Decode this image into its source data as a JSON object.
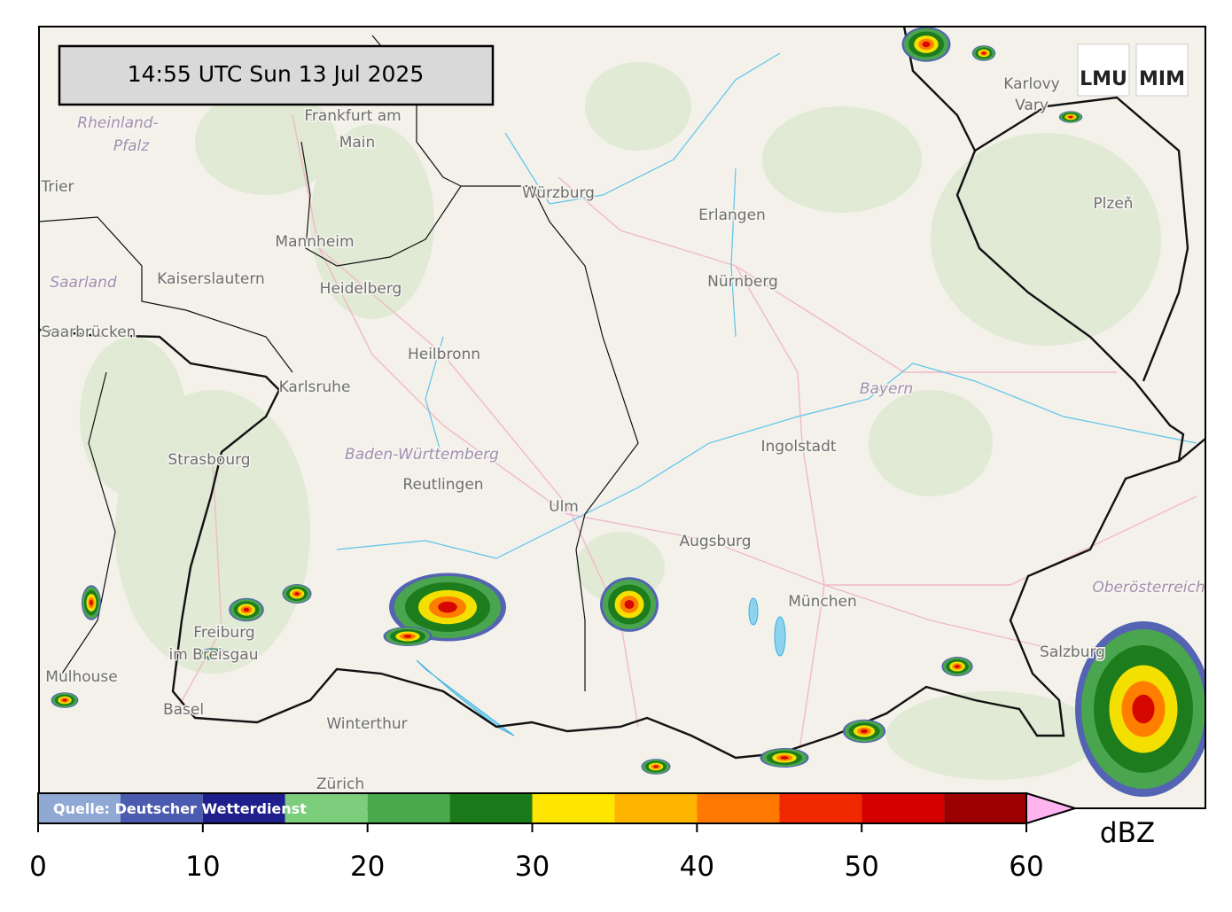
{
  "timestamp": "14:55 UTC  Sun 13 Jul 2025",
  "logos": [
    "LMU",
    "MIM"
  ],
  "places": [
    {
      "label": "Frankfurt am"
    },
    {
      "label": "Main"
    },
    {
      "label": "Rheinland-"
    },
    {
      "label": "Pfalz"
    },
    {
      "label": "Trier"
    },
    {
      "label": "Mannheim"
    },
    {
      "label": "Würzburg"
    },
    {
      "label": "Erlangen"
    },
    {
      "label": "Nürnberg"
    },
    {
      "label": "Karlovy"
    },
    {
      "label": "Vary"
    },
    {
      "label": "Plzeň"
    },
    {
      "label": "Saarland"
    },
    {
      "label": "Kaiserslautern"
    },
    {
      "label": "Heidelberg"
    },
    {
      "label": "Saarbrücken"
    },
    {
      "label": "Heilbronn"
    },
    {
      "label": "Karlsruhe"
    },
    {
      "label": "Bayern"
    },
    {
      "label": "Ingolstadt"
    },
    {
      "label": "Strasbourg"
    },
    {
      "label": "Baden-Württemberg"
    },
    {
      "label": "Reutlingen"
    },
    {
      "label": "Ulm"
    },
    {
      "label": "Augsburg"
    },
    {
      "label": "München"
    },
    {
      "label": "Oberösterreich"
    },
    {
      "label": "Freiburg"
    },
    {
      "label": "im Breisgau"
    },
    {
      "label": "Mulhouse"
    },
    {
      "label": "Basel"
    },
    {
      "label": "Winterthur"
    },
    {
      "label": "Zürich"
    },
    {
      "label": "Salzburg"
    }
  ],
  "colorbar": {
    "source": "Quelle: Deutscher Wetterdienst",
    "unit": "dBZ",
    "lim": [
      0,
      60
    ],
    "bounds": [
      0,
      5,
      10,
      15,
      20,
      25,
      30,
      35,
      40,
      45,
      50,
      55,
      60
    ],
    "colors": [
      "#8fa8d4",
      "#4b5cb0",
      "#1e1e8c",
      "#7ccd7c",
      "#4aa94a",
      "#1a7a1a",
      "#ffe600",
      "#ffb400",
      "#ff7800",
      "#f02800",
      "#d40000",
      "#9c0000"
    ],
    "extend_color": "#ffb4f0",
    "ticks": [
      0,
      10,
      20,
      30,
      40,
      50,
      60
    ]
  }
}
